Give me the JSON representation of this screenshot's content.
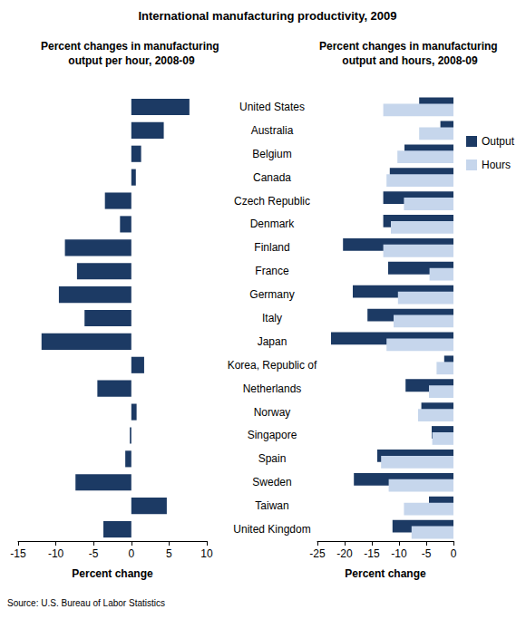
{
  "title": "International manufacturing productivity, 2009",
  "source": "Source: U.S. Bureau of Labor Statistics",
  "chart_data": [
    {
      "type": "bar",
      "orientation": "horizontal",
      "title": "Percent changes in manufacturing output per hour, 2008-09",
      "xlabel": "Percent change",
      "categories": [
        "United States",
        "Australia",
        "Belgium",
        "Canada",
        "Czech Republic",
        "Denmark",
        "Finland",
        "France",
        "Germany",
        "Italy",
        "Japan",
        "Korea, Republic of",
        "Netherlands",
        "Norway",
        "Singapore",
        "Spain",
        "Sweden",
        "Taiwan",
        "United Kingdom"
      ],
      "values": [
        7.7,
        4.3,
        1.3,
        0.6,
        -3.5,
        -1.5,
        -8.8,
        -7.2,
        -9.6,
        -6.2,
        -11.9,
        1.7,
        -4.5,
        0.7,
        -0.2,
        -0.8,
        -7.4,
        4.7,
        -3.7
      ],
      "color": "#1c3a64",
      "xlim": [
        -15,
        10
      ],
      "xticks": [
        -15,
        -10,
        -5,
        0,
        5,
        10
      ],
      "grid": false,
      "tick_labels": "x"
    },
    {
      "type": "bar",
      "orientation": "horizontal",
      "title": "Percent changes in manufacturing output and hours, 2008-09",
      "xlabel": "Percent change",
      "categories": [
        "United States",
        "Australia",
        "Belgium",
        "Canada",
        "Czech Republic",
        "Denmark",
        "Finland",
        "France",
        "Germany",
        "Italy",
        "Japan",
        "Korea, Republic of",
        "Netherlands",
        "Norway",
        "Singapore",
        "Spain",
        "Sweden",
        "Taiwan",
        "United Kingdom"
      ],
      "series": [
        {
          "name": "Output",
          "color": "#1c3a64",
          "values": [
            -6.3,
            -2.4,
            -9.0,
            -11.7,
            -12.9,
            -12.9,
            -20.3,
            -12.0,
            -18.5,
            -15.8,
            -22.5,
            -1.7,
            -8.8,
            -5.9,
            -4.0,
            -14.0,
            -18.3,
            -4.5,
            -11.2
          ]
        },
        {
          "name": "Hours",
          "color": "#c6d6ec",
          "values": [
            -12.9,
            -6.3,
            -10.3,
            -12.3,
            -9.1,
            -11.5,
            -12.9,
            -4.4,
            -10.2,
            -11.0,
            -12.3,
            -3.1,
            -4.5,
            -6.5,
            -3.9,
            -13.3,
            -11.9,
            -9.1,
            -7.7
          ]
        }
      ],
      "xlim": [
        -25,
        0
      ],
      "xticks": [
        -25,
        -20,
        -15,
        -10,
        -5,
        0
      ],
      "grid": false,
      "legend": "right"
    }
  ]
}
